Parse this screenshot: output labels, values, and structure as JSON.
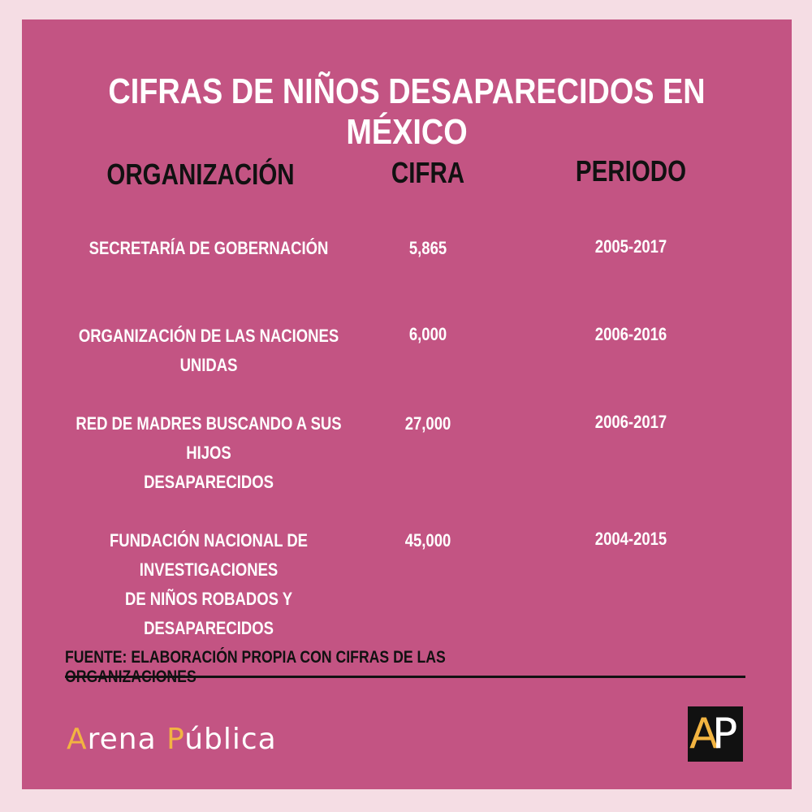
{
  "title": "CIFRAS DE NIÑOS DESAPARECIDOS EN MÉXICO",
  "columns": {
    "organization": "ORGANIZACIÓN",
    "figure": "CIFRA",
    "period": "PERIODO"
  },
  "rows": [
    {
      "organization_line1": "SECRETARÍA DE GOBERNACIÓN",
      "organization_line2": "",
      "figure": "5,865",
      "period": "2005-2017"
    },
    {
      "organization_line1": "ORGANIZACIÓN DE LAS NACIONES UNIDAS",
      "organization_line2": "",
      "figure": "6,000",
      "period": "2006-2016"
    },
    {
      "organization_line1": "RED DE MADRES BUSCANDO A SUS HIJOS",
      "organization_line2": "DESAPARECIDOS",
      "figure": "27,000",
      "period": "2006-2017"
    },
    {
      "organization_line1": "FUNDACIÓN NACIONAL DE INVESTIGACIONES",
      "organization_line2": "DE NIÑOS ROBADOS Y DESAPARECIDOS",
      "figure": "45,000",
      "period": "2004-2015"
    }
  ],
  "source": "FUENTE: ELABORACIÓN PROPIA CON CIFRAS DE LAS ORGANIZACIONES",
  "brand": {
    "a_initial": "A",
    "a_rest": "rena ",
    "p_initial": "P",
    "p_rest": "ública",
    "logo_a": "A",
    "logo_p": "P"
  },
  "colors": {
    "background": "#f5dde4",
    "card": "#c35483",
    "accent": "#f2b441",
    "text_light": "#ffffff",
    "text_dark": "#111111"
  }
}
